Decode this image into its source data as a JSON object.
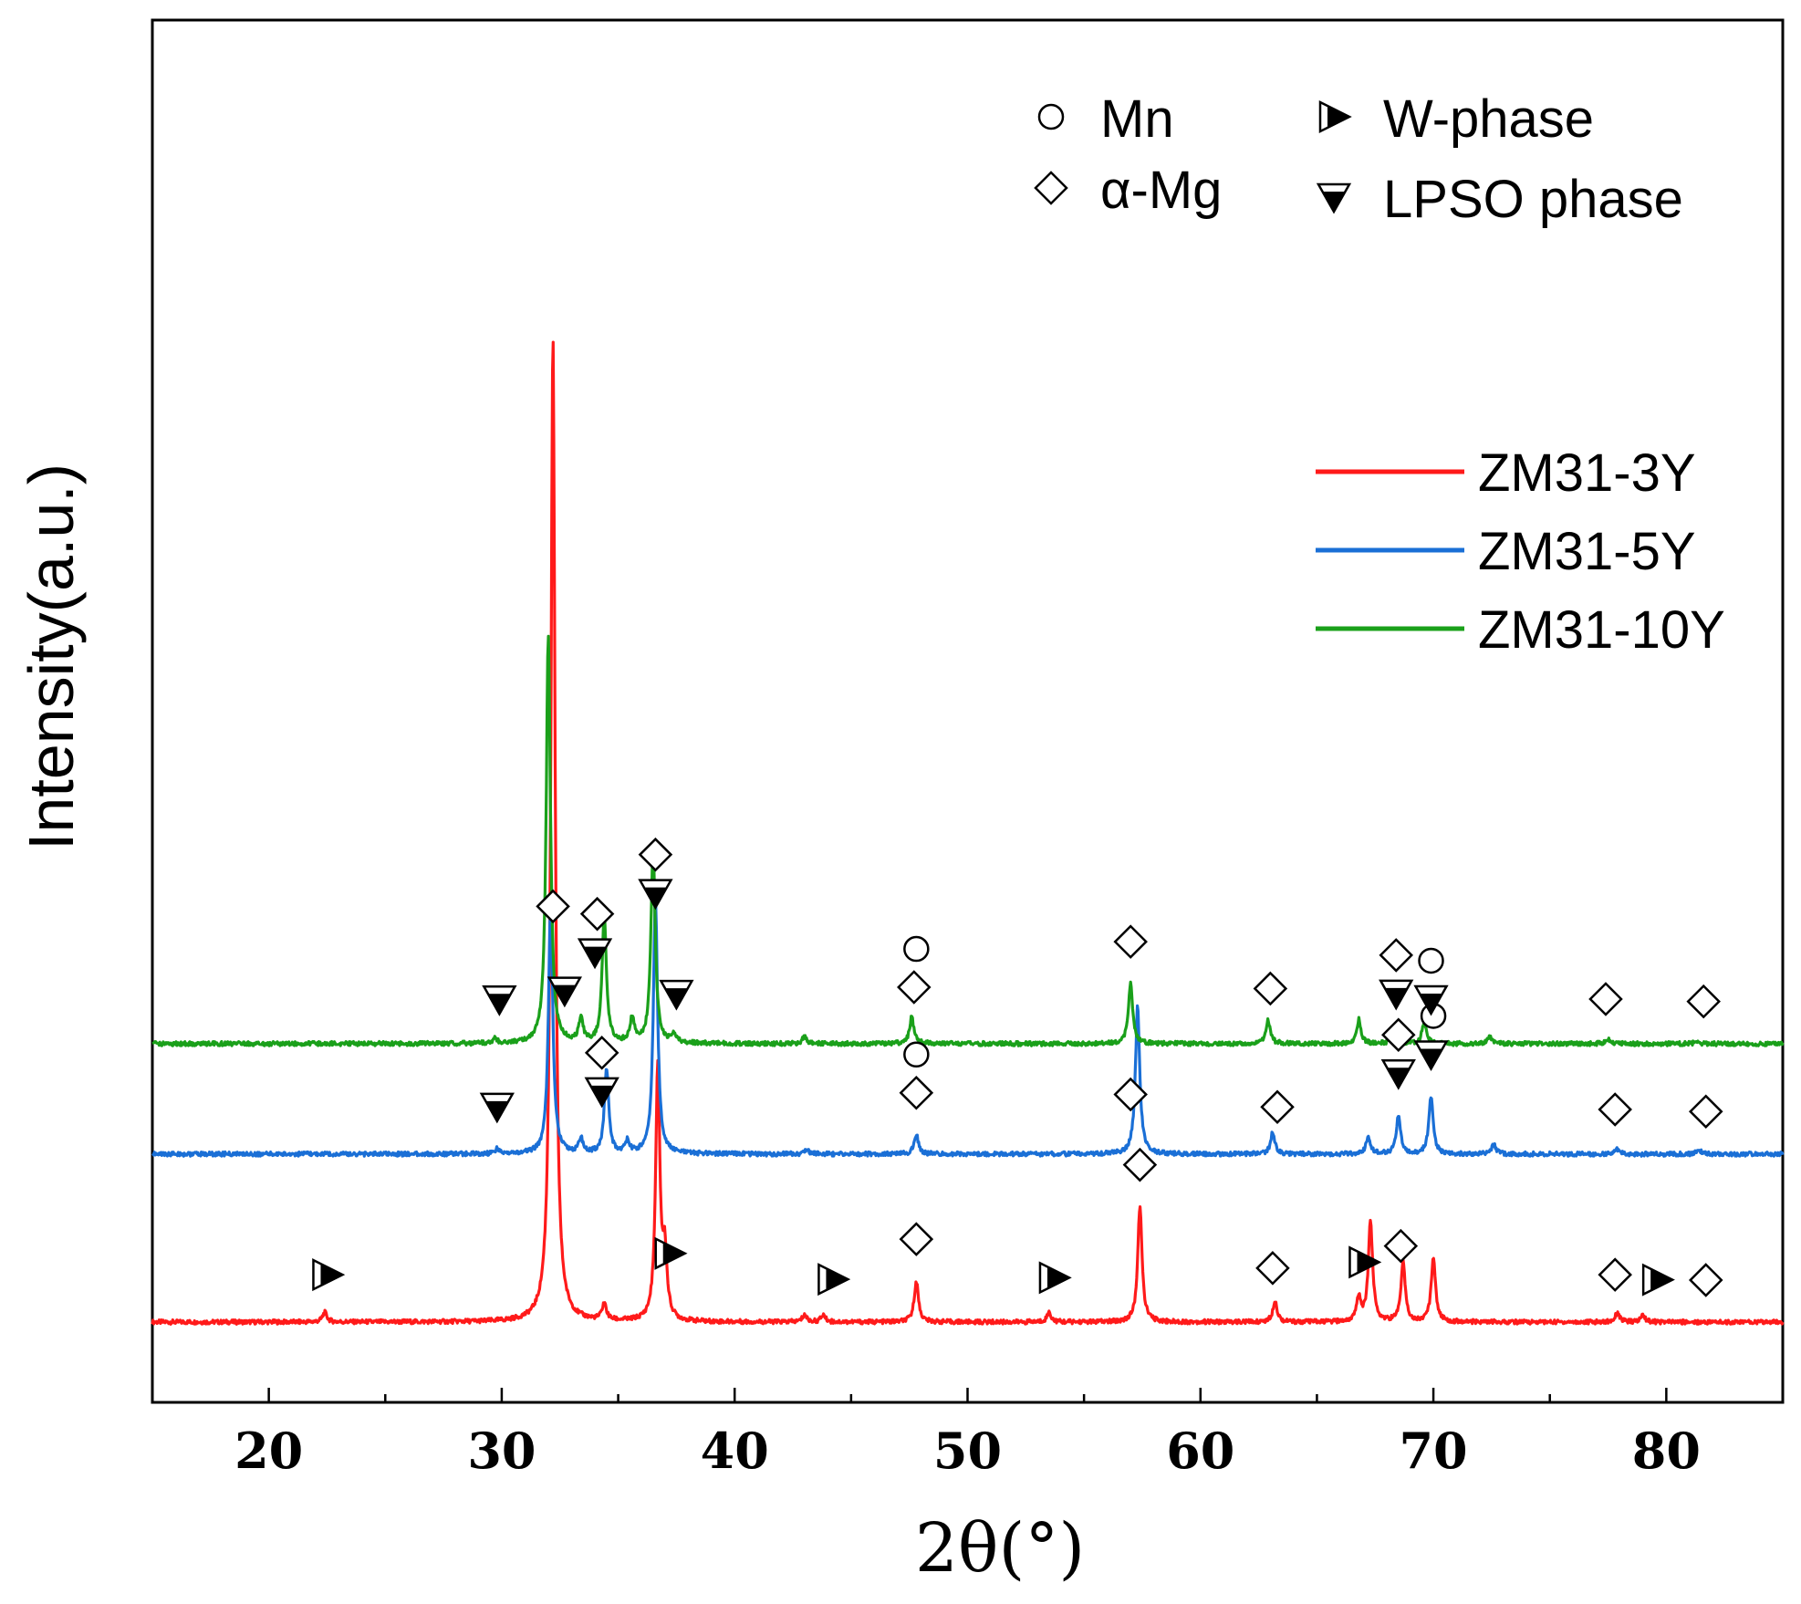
{
  "chart_data": {
    "type": "line",
    "title": "",
    "xlabel": "2θ(°)",
    "ylabel": "Intensity(a.u.)",
    "xlim": [
      15,
      85
    ],
    "x_ticks": [
      20,
      30,
      40,
      50,
      60,
      70,
      80
    ],
    "tick_labels": [
      "20",
      "30",
      "40",
      "50",
      "60",
      "70",
      "80"
    ],
    "grid": false,
    "series": [
      {
        "name": "ZM31-3Y",
        "color": "#ff1a1a",
        "baseline": 0.0,
        "peaks": [
          [
            22.4,
            0.04
          ],
          [
            32.2,
            4.1
          ],
          [
            34.4,
            0.07
          ],
          [
            36.7,
            1.05
          ],
          [
            37.0,
            0.26
          ],
          [
            43.0,
            0.03
          ],
          [
            43.8,
            0.03
          ],
          [
            47.8,
            0.17
          ],
          [
            53.5,
            0.04
          ],
          [
            57.4,
            0.48
          ],
          [
            63.2,
            0.09
          ],
          [
            66.8,
            0.1
          ],
          [
            67.3,
            0.42
          ],
          [
            68.7,
            0.25
          ],
          [
            70.0,
            0.27
          ],
          [
            77.9,
            0.04
          ],
          [
            79.0,
            0.03
          ]
        ]
      },
      {
        "name": "ZM31-5Y",
        "color": "#1a6fd6",
        "baseline": 0.7,
        "peaks": [
          [
            29.8,
            0.02
          ],
          [
            32.1,
            1.05
          ],
          [
            33.4,
            0.06
          ],
          [
            34.5,
            0.35
          ],
          [
            35.4,
            0.05
          ],
          [
            36.6,
            1.06
          ],
          [
            43.1,
            0.02
          ],
          [
            47.8,
            0.08
          ],
          [
            57.3,
            0.62
          ],
          [
            63.1,
            0.09
          ],
          [
            67.2,
            0.07
          ],
          [
            68.5,
            0.16
          ],
          [
            69.9,
            0.24
          ],
          [
            72.6,
            0.04
          ],
          [
            77.9,
            0.02
          ],
          [
            81.4,
            0.02
          ]
        ]
      },
      {
        "name": "ZM31-10Y",
        "color": "#1aa01a",
        "baseline": 1.16,
        "peaks": [
          [
            29.7,
            0.02
          ],
          [
            32.0,
            1.7
          ],
          [
            33.4,
            0.1
          ],
          [
            34.4,
            0.54
          ],
          [
            35.6,
            0.1
          ],
          [
            36.5,
            0.82
          ],
          [
            37.4,
            0.04
          ],
          [
            43.0,
            0.03
          ],
          [
            47.6,
            0.11
          ],
          [
            57.0,
            0.25
          ],
          [
            62.9,
            0.1
          ],
          [
            66.8,
            0.1
          ],
          [
            68.3,
            0.06
          ],
          [
            69.6,
            0.09
          ],
          [
            72.4,
            0.03
          ],
          [
            77.5,
            0.02
          ],
          [
            81.3,
            0.01
          ]
        ]
      }
    ],
    "legend_phases": [
      {
        "symbol": "circle",
        "label": "Mn"
      },
      {
        "symbol": "diamond",
        "label": "α-Mg"
      },
      {
        "symbol": "w-triangle",
        "label": "W-phase"
      },
      {
        "symbol": "lpso-triangle",
        "label": "LPSO phase"
      }
    ],
    "legend_series": [
      "ZM31-3Y",
      "ZM31-5Y",
      "ZM31-10Y"
    ],
    "annotations": {
      "ZM31-3Y": [
        {
          "symbol": "w-triangle",
          "x": 22.5
        },
        {
          "symbol": "w-triangle",
          "x": 37.2
        },
        {
          "symbol": "w-triangle",
          "x": 44.2
        },
        {
          "symbol": "w-triangle",
          "x": 53.7
        },
        {
          "symbol": "w-triangle",
          "x": 67.0
        },
        {
          "symbol": "w-triangle",
          "x": 79.6
        },
        {
          "symbol": "diamond",
          "x": 47.8
        },
        {
          "symbol": "diamond",
          "x": 57.4
        },
        {
          "symbol": "diamond",
          "x": 63.1
        },
        {
          "symbol": "diamond",
          "x": 68.6
        },
        {
          "symbol": "diamond",
          "x": 77.8
        },
        {
          "symbol": "diamond",
          "x": 81.7
        }
      ],
      "ZM31-5Y": [
        {
          "symbol": "lpso-triangle",
          "x": 29.8
        },
        {
          "symbol": "lpso-triangle",
          "x": 34.3
        },
        {
          "symbol": "lpso-triangle",
          "x": 68.5
        },
        {
          "symbol": "lpso-triangle",
          "x": 69.9
        },
        {
          "symbol": "diamond",
          "x": 34.3
        },
        {
          "symbol": "diamond",
          "x": 47.8
        },
        {
          "symbol": "diamond",
          "x": 57.0
        },
        {
          "symbol": "diamond",
          "x": 63.3
        },
        {
          "symbol": "diamond",
          "x": 68.5
        },
        {
          "symbol": "diamond",
          "x": 77.8
        },
        {
          "symbol": "diamond",
          "x": 81.7
        },
        {
          "symbol": "circle",
          "x": 47.8
        },
        {
          "symbol": "circle",
          "x": 70.0
        }
      ],
      "ZM31-10Y": [
        {
          "symbol": "lpso-triangle",
          "x": 32.7
        },
        {
          "symbol": "lpso-triangle",
          "x": 29.9
        },
        {
          "symbol": "lpso-triangle",
          "x": 34.0
        },
        {
          "symbol": "lpso-triangle",
          "x": 36.6
        },
        {
          "symbol": "lpso-triangle",
          "x": 37.5
        },
        {
          "symbol": "lpso-triangle",
          "x": 68.4
        },
        {
          "symbol": "lpso-triangle",
          "x": 69.9
        },
        {
          "symbol": "diamond",
          "x": 32.2
        },
        {
          "symbol": "diamond",
          "x": 34.1
        },
        {
          "symbol": "diamond",
          "x": 36.6
        },
        {
          "symbol": "diamond",
          "x": 47.7
        },
        {
          "symbol": "diamond",
          "x": 57.0
        },
        {
          "symbol": "diamond",
          "x": 63.0
        },
        {
          "symbol": "diamond",
          "x": 68.4
        },
        {
          "symbol": "diamond",
          "x": 77.4
        },
        {
          "symbol": "diamond",
          "x": 81.6
        },
        {
          "symbol": "circle",
          "x": 47.8
        },
        {
          "symbol": "circle",
          "x": 69.9
        }
      ]
    }
  }
}
